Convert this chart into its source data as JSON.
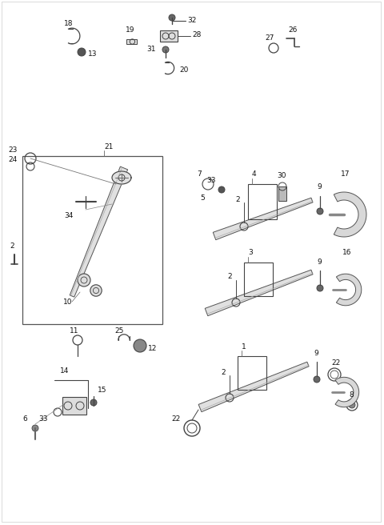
{
  "bg_color": "#ffffff",
  "line_color": "#444444",
  "fig_width": 4.8,
  "fig_height": 6.56,
  "dpi": 100
}
